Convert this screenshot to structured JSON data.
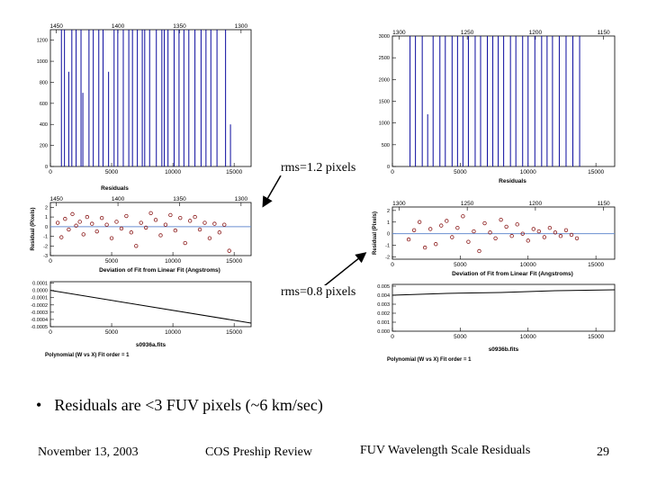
{
  "annotations": {
    "rms_a": "rms=1.2 pixels",
    "rms_b": "rms=0.8 pixels"
  },
  "bullet": "Residuals are <3 FUV pixels (~6 km/sec)",
  "footer": {
    "date": "November 13, 2003",
    "title": "COS Preship Review",
    "subject": "FUV Wavelength Scale Residuals",
    "page": "29"
  },
  "colors": {
    "lines": "#0a0a9e",
    "points": "#8b1a1a",
    "zero": "#6a8fd0"
  },
  "chart_data": [
    {
      "id": "a-lines",
      "type": "bar",
      "panel_title": "",
      "top_axis_ticks": [
        "1450",
        "1400",
        "1350",
        "1300"
      ],
      "top_axis_values": [
        1450,
        1400,
        1350,
        1300
      ],
      "x_ticks": [
        "0",
        "5000",
        "10000",
        "15000"
      ],
      "xlim": [
        0,
        16384
      ],
      "y_ticks": [
        "0",
        "200",
        "400",
        "600",
        "800",
        "1000",
        "1200"
      ],
      "ylim": [
        0,
        1300
      ],
      "line_x": [
        900,
        1150,
        1500,
        1750,
        2100,
        2500,
        2650,
        3150,
        3500,
        3950,
        4300,
        4750,
        5200,
        5500,
        5950,
        6400,
        6700,
        7100,
        7500,
        7700,
        8100,
        8650,
        9100,
        9300,
        9600,
        10100,
        10500,
        10900,
        11300,
        11800,
        12300,
        12700,
        13100,
        13600,
        14300,
        14700
      ],
      "line_height": [
        1300,
        1300,
        900,
        1300,
        1300,
        1300,
        700,
        1300,
        1300,
        1300,
        1300,
        900,
        1300,
        1300,
        1300,
        1300,
        1300,
        1300,
        1300,
        1300,
        1300,
        1300,
        1300,
        1300,
        1300,
        1300,
        1300,
        1300,
        1300,
        1300,
        1300,
        1300,
        1300,
        1300,
        1300,
        400
      ],
      "caption": ""
    },
    {
      "id": "b-lines",
      "type": "bar",
      "panel_title": "",
      "top_axis_ticks": [
        "1300",
        "1250",
        "1200",
        "1150"
      ],
      "top_axis_values": [
        1300,
        1250,
        1200,
        1150
      ],
      "x_ticks": [
        "0",
        "5000",
        "10000",
        "15000"
      ],
      "xlim": [
        0,
        16384
      ],
      "y_ticks": [
        "0",
        "500",
        "1000",
        "1500",
        "2000",
        "2500",
        "3000"
      ],
      "ylim": [
        0,
        3000
      ],
      "line_x": [
        1300,
        1700,
        2200,
        2600,
        3000,
        3500,
        3900,
        4400,
        4800,
        5200,
        5600,
        6100,
        6500,
        7000,
        7400,
        7800,
        8200,
        8700,
        9100,
        9600,
        10000,
        10500,
        11000,
        11400,
        11800,
        12300,
        12800,
        13300,
        13800
      ],
      "line_height": [
        3000,
        3000,
        3000,
        1200,
        3000,
        3000,
        3000,
        3000,
        3000,
        3000,
        3000,
        3000,
        3000,
        3000,
        3000,
        3000,
        3000,
        3000,
        3000,
        3000,
        3000,
        3000,
        3000,
        3000,
        3000,
        3000,
        3000,
        3000,
        3000
      ],
      "caption": "Residuals"
    },
    {
      "id": "a-resid",
      "type": "scatter",
      "panel_title": "Residuals",
      "top_axis_ticks": [
        "1450",
        "1400",
        "1350",
        "1300"
      ],
      "top_axis_values": [
        1450,
        1400,
        1350,
        1300
      ],
      "x_ticks": [
        "0",
        "5000",
        "10000",
        "15000"
      ],
      "xlim": [
        0,
        16384
      ],
      "y_ticks": [
        "-3",
        "-2",
        "-1",
        "0",
        "1",
        "2"
      ],
      "ylim": [
        -3,
        2.5
      ],
      "ylabel": "Residual (Pixels)",
      "x": [
        600,
        900,
        1200,
        1500,
        1800,
        2100,
        2400,
        2700,
        3000,
        3400,
        3800,
        4200,
        4600,
        5000,
        5400,
        5800,
        6200,
        6600,
        7000,
        7400,
        7800,
        8200,
        8600,
        9000,
        9400,
        9800,
        10200,
        10600,
        11000,
        11400,
        11800,
        12200,
        12600,
        13000,
        13400,
        13800,
        14200,
        14600
      ],
      "y": [
        0.4,
        -1.1,
        0.8,
        -0.3,
        1.3,
        0.1,
        0.5,
        -0.8,
        1.0,
        0.3,
        -0.5,
        0.9,
        0.2,
        -1.2,
        0.5,
        -0.2,
        1.1,
        -0.6,
        -2.0,
        0.4,
        -0.1,
        1.4,
        0.7,
        -0.9,
        0.2,
        1.2,
        -0.4,
        0.9,
        -1.7,
        0.6,
        1.0,
        -0.3,
        0.4,
        -1.2,
        0.3,
        -0.6,
        0.2,
        -2.5
      ],
      "caption": "Deviation of Fit from Linear Fit (Angstroms)"
    },
    {
      "id": "b-resid",
      "type": "scatter",
      "panel_title": "",
      "top_axis_ticks": [
        "1300",
        "1250",
        "1200",
        "1150"
      ],
      "top_axis_values": [
        1300,
        1250,
        1200,
        1150
      ],
      "x_ticks": [
        "0",
        "5000",
        "10000",
        "15000"
      ],
      "xlim": [
        0,
        16384
      ],
      "y_ticks": [
        "-2",
        "-1",
        "0",
        "1",
        "2"
      ],
      "ylim": [
        -2.2,
        2.3
      ],
      "ylabel": "Residual (Pixels)",
      "x": [
        1200,
        1600,
        2000,
        2400,
        2800,
        3200,
        3600,
        4000,
        4400,
        4800,
        5200,
        5600,
        6000,
        6400,
        6800,
        7200,
        7600,
        8000,
        8400,
        8800,
        9200,
        9600,
        10000,
        10400,
        10800,
        11200,
        11600,
        12000,
        12400,
        12800,
        13200,
        13600
      ],
      "y": [
        -0.5,
        0.3,
        1.0,
        -1.2,
        0.4,
        -0.9,
        0.7,
        1.1,
        -0.3,
        0.5,
        1.5,
        -0.7,
        0.2,
        -1.5,
        0.9,
        0.1,
        -0.4,
        1.2,
        0.6,
        -0.2,
        0.8,
        0.0,
        -0.6,
        0.4,
        0.2,
        -0.3,
        0.5,
        0.1,
        -0.2,
        0.3,
        -0.1,
        -0.4
      ],
      "caption": "Deviation of Fit from Linear Fit (Angstroms)"
    },
    {
      "id": "a-dev",
      "type": "line",
      "panel_title": "",
      "x_ticks": [
        "0",
        "5000",
        "10000",
        "15000"
      ],
      "xlim": [
        0,
        16384
      ],
      "y_ticks": [
        "-0.0005",
        "-0.0004",
        "-0.0003",
        "-0.0002",
        "-0.0001",
        "0.0000",
        "0.0001"
      ],
      "ylim": [
        -0.0005,
        0.00012
      ],
      "x": [
        0,
        16384
      ],
      "y": [
        0.0,
        -0.00045
      ],
      "caption": "s0936a.fits",
      "note": "Polynomial (W vs X) Fit order = 1"
    },
    {
      "id": "b-dev",
      "type": "line",
      "panel_title": "",
      "x_ticks": [
        "0",
        "5000",
        "10000",
        "15000"
      ],
      "xlim": [
        0,
        16384
      ],
      "y_ticks": [
        "0.000",
        "0.001",
        "0.002",
        "0.003",
        "0.004",
        "0.005"
      ],
      "ylim": [
        0,
        0.0052
      ],
      "x": [
        0,
        4000,
        8000,
        12000,
        16384
      ],
      "y": [
        0.004,
        0.0042,
        0.0043,
        0.0045,
        0.0046
      ],
      "caption": "s0936b.fits",
      "note": "Polynomial (W vs X) Fit order = 1"
    }
  ]
}
